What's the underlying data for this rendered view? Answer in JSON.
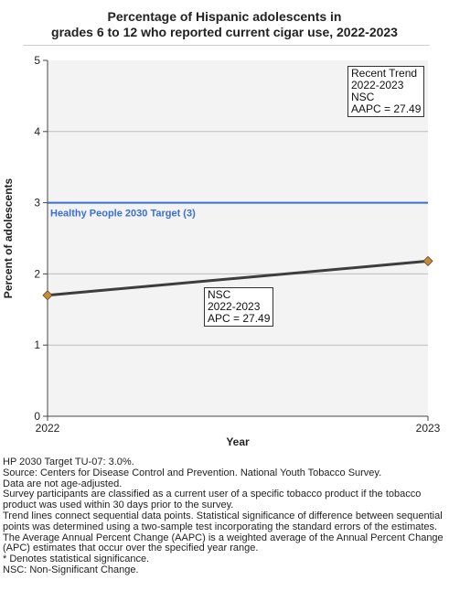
{
  "title_line1": "Percentage of Hispanic adolescents in",
  "title_line2": "grades 6 to 12 who reported current cigar use, 2022-2023",
  "chart_data": {
    "type": "line",
    "xlabel": "Year",
    "ylabel": "Percent of adolescents",
    "x": [
      "2022",
      "2023"
    ],
    "ylim": [
      0,
      5
    ],
    "yticks": [
      "0",
      "1",
      "2",
      "3",
      "4",
      "5"
    ],
    "grid": true,
    "series": [
      {
        "values": [
          1.7,
          2.18
        ],
        "color": "#3d3d3d",
        "marker_color": "#c98a3a"
      }
    ],
    "target": {
      "value": 3,
      "label": "Healthy People 2030 Target (3)",
      "color": "#3a6fd8"
    },
    "annotations": {
      "recent_trend": [
        "Recent Trend",
        "2022-2023",
        "NSC",
        "AAPC = 27.49"
      ],
      "segment": [
        "NSC",
        "2022-2023",
        "APC = 27.49"
      ]
    }
  },
  "notes": [
    "HP 2030 Target TU-07: 3.0%.",
    "Source: Centers for Disease Control and Prevention. National Youth Tobacco Survey.",
    "Data are not age-adjusted.",
    "Survey participants are classified as a current user of a specific tobacco product if the tobacco product was used within 30 days prior to the survey.",
    "Trend lines connect sequential data points. Statistical significance of difference between sequential points was determined using a two-sample test incorporating the standard errors of the estimates.",
    "The Average Annual Percent Change (AAPC) is a weighted average of the Annual Percent Change (APC) estimates that occur over the specified year range.",
    "* Denotes statistical significance.",
    "NSC: Non-Significant Change."
  ]
}
